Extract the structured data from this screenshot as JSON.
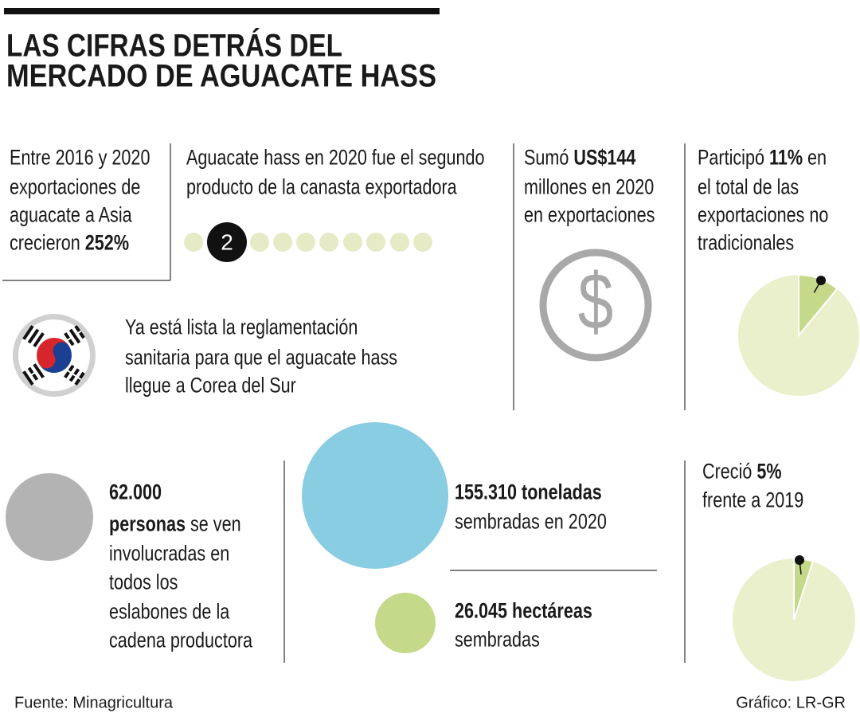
{
  "title": {
    "lines": [
      "LAS CIFRAS DETRÁS DEL",
      "MERCADO DE AGUACATE HASS"
    ]
  },
  "asia": {
    "lines": [
      [
        {
          "text": "Entre 2016 y 2020"
        }
      ],
      [
        {
          "text": "exportaciones de"
        }
      ],
      [
        {
          "text": "aguacate a Asia"
        }
      ],
      [
        {
          "text": "crecieron "
        },
        {
          "text": "252%",
          "bold": true
        }
      ]
    ]
  },
  "ranking": {
    "lines": [
      [
        {
          "text": "Aguacate hass en 2020 fue el segundo"
        }
      ],
      [
        {
          "text": "producto de la canasta exportadora"
        }
      ]
    ],
    "rank": 2,
    "dots": 10
  },
  "exports": {
    "lines": [
      [
        {
          "text": "Sumó "
        },
        {
          "text": "US$144",
          "bold": true
        }
      ],
      [
        {
          "text": "millones en 2020"
        }
      ],
      [
        {
          "text": "en exportaciones"
        }
      ]
    ]
  },
  "share": {
    "lines": [
      [
        {
          "text": "Participó "
        },
        {
          "text": "11%",
          "bold": true
        },
        {
          "text": " en"
        }
      ],
      [
        {
          "text": "el total de las"
        }
      ],
      [
        {
          "text": "exportaciones no"
        }
      ],
      [
        {
          "text": "tradicionales"
        }
      ]
    ],
    "pie_value": 11
  },
  "korea": {
    "lines": [
      [
        {
          "text": "Ya está lista la reglamentación"
        }
      ],
      [
        {
          "text": "sanitaria para que el aguacate hass"
        }
      ],
      [
        {
          "text": "llegue a Corea del Sur"
        }
      ]
    ]
  },
  "people": {
    "lines": [
      [
        {
          "text": "62.000",
          "bold": true
        }
      ],
      [
        {
          "text": "personas",
          "bold": true
        },
        {
          "text": " se ven"
        }
      ],
      [
        {
          "text": "involucradas en"
        }
      ],
      [
        {
          "text": "todos los"
        }
      ],
      [
        {
          "text": "eslabones de la"
        }
      ],
      [
        {
          "text": "cadena productora"
        }
      ]
    ]
  },
  "tons": {
    "lines": [
      [
        {
          "text": "155.310 toneladas",
          "bold": true
        }
      ],
      [
        {
          "text": "sembradas en 2020"
        }
      ]
    ]
  },
  "hectares": {
    "lines": [
      [
        {
          "text": "26.045 hectáreas",
          "bold": true
        }
      ],
      [
        {
          "text": "sembradas"
        }
      ]
    ]
  },
  "growth": {
    "lines": [
      [
        {
          "text": "Creció "
        },
        {
          "text": "5%",
          "bold": true
        }
      ],
      [
        {
          "text": "frente a 2019"
        }
      ]
    ],
    "pie_value": 5
  },
  "footer": {
    "source": "Fuente: Minagricultura",
    "credit": "Gráfico: LR-GR"
  }
}
